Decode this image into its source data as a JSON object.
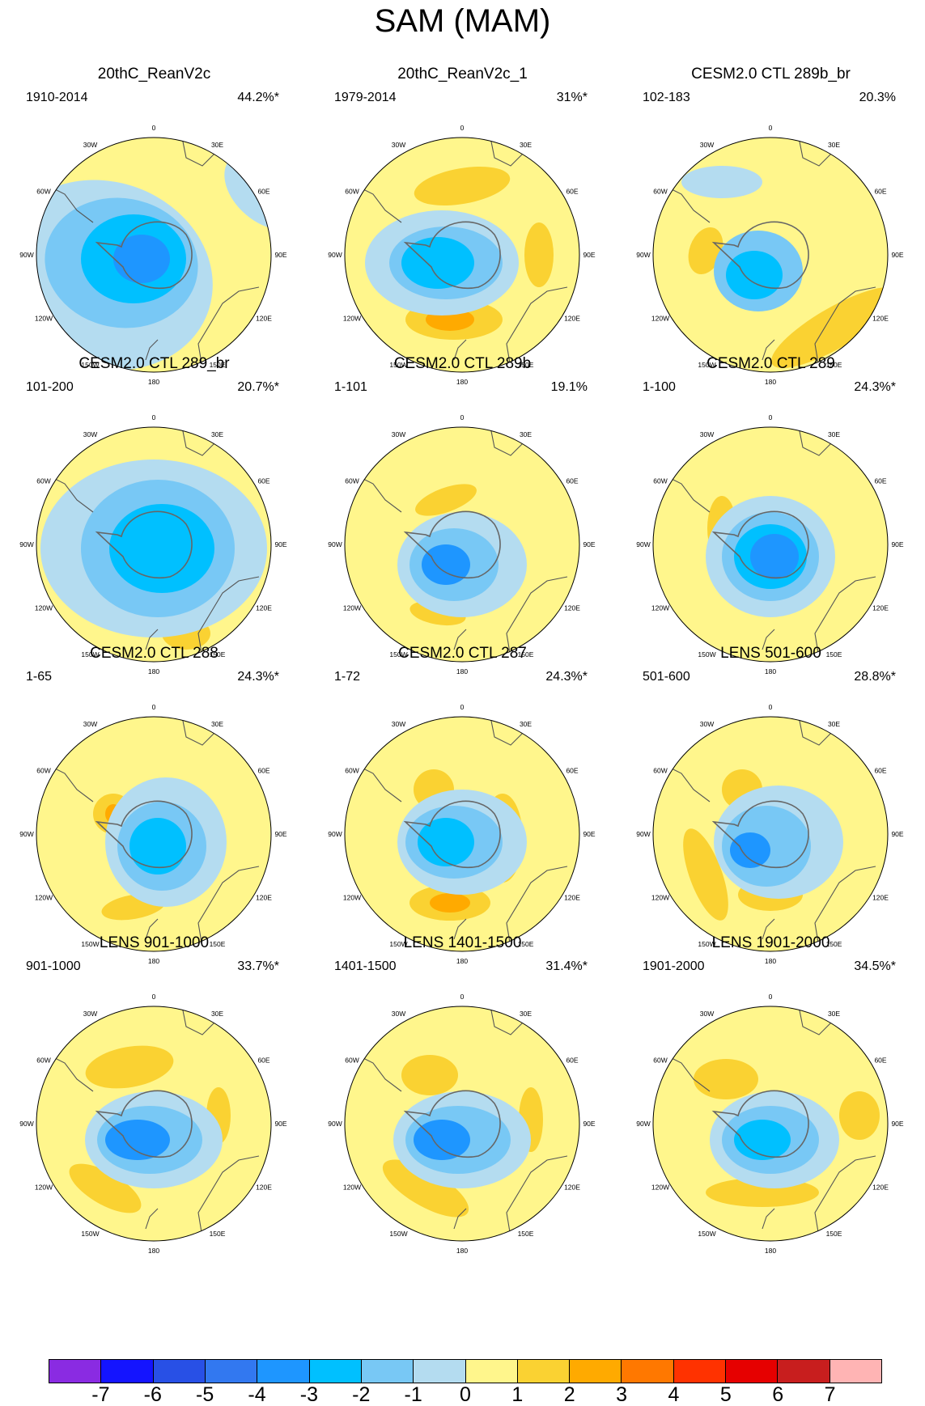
{
  "figure": {
    "title": "SAM (MAM)"
  },
  "longitude_labels": [
    "0",
    "30E",
    "60E",
    "90E",
    "120E",
    "150E",
    "180",
    "150W",
    "120W",
    "90W",
    "60W",
    "30W"
  ],
  "panels": [
    {
      "title": "20thC_ReanV2c",
      "years": "1910-2014",
      "variance": "44.2%*"
    },
    {
      "title": "20thC_ReanV2c_1",
      "years": "1979-2014",
      "variance": "31%*"
    },
    {
      "title": "CESM2.0 CTL 289b_br",
      "years": "102-183",
      "variance": "20.3%"
    },
    {
      "title": "CESM2.0 CTL 289_br",
      "years": "101-200",
      "variance": "20.7%*"
    },
    {
      "title": "CESM2.0 CTL 289b",
      "years": "1-101",
      "variance": "19.1%"
    },
    {
      "title": "CESM2.0 CTL 289",
      "years": "1-100",
      "variance": "24.3%*"
    },
    {
      "title": "CESM2.0 CTL 288",
      "years": "1-65",
      "variance": "24.3%*"
    },
    {
      "title": "CESM2.0 CTL 287",
      "years": "1-72",
      "variance": "24.3%*"
    },
    {
      "title": "LENS 501-600",
      "years": "501-600",
      "variance": "28.8%*"
    },
    {
      "title": "LENS 901-1000",
      "years": "901-1000",
      "variance": "33.7%*"
    },
    {
      "title": "LENS 1401-1500",
      "years": "1401-1500",
      "variance": "31.4%*"
    },
    {
      "title": "LENS 1901-2000",
      "years": "1901-2000",
      "variance": "34.5%*"
    }
  ],
  "colorbar": {
    "colors": [
      "#8a2be2",
      "#1414ff",
      "#2850e6",
      "#3278f0",
      "#1e96ff",
      "#00c0ff",
      "#78c8f5",
      "#b4dcf0",
      "#fff68c",
      "#fad232",
      "#ffaa00",
      "#ff7800",
      "#ff3200",
      "#e60000",
      "#c81e1e",
      "#ffb4b4"
    ],
    "labels": [
      "-7",
      "-6",
      "-5",
      "-4",
      "-3",
      "-2",
      "-1",
      "0",
      "1",
      "2",
      "3",
      "4",
      "5",
      "6",
      "7"
    ]
  }
}
